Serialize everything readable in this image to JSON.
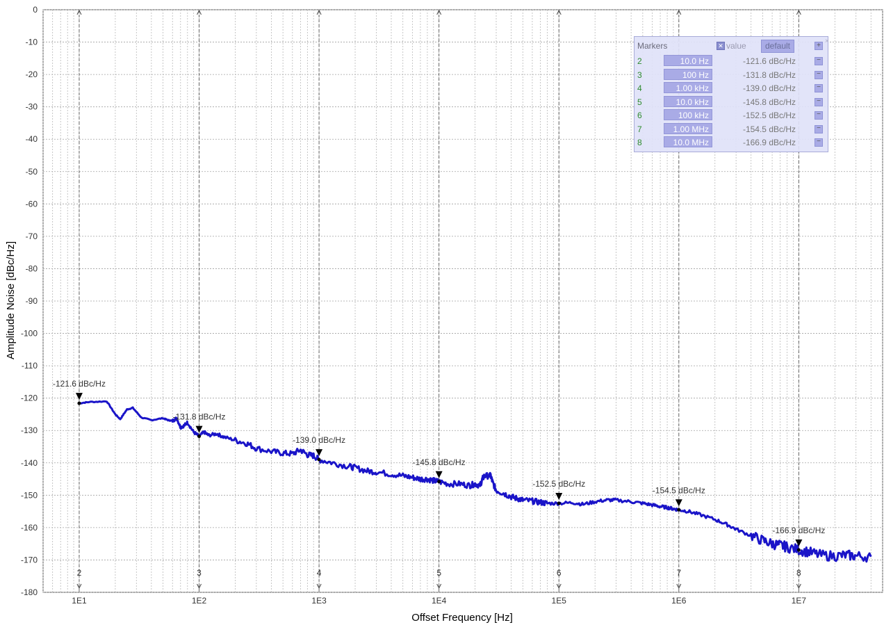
{
  "chart_data": {
    "type": "line",
    "title": "",
    "xlabel": "Offset Frequency [Hz]",
    "ylabel": "Amplitude Noise [dBc/Hz]",
    "x_scale": "log",
    "xlim": [
      5,
      50000000
    ],
    "ylim": [
      -180,
      0
    ],
    "x_ticks": [
      10,
      100,
      1000,
      10000,
      100000,
      1000000,
      10000000
    ],
    "x_tick_labels": [
      "1E1",
      "1E2",
      "1E3",
      "1E4",
      "1E5",
      "1E6",
      "1E7"
    ],
    "y_ticks": [
      0,
      -10,
      -20,
      -30,
      -40,
      -50,
      -60,
      -70,
      -80,
      -90,
      -100,
      -110,
      -120,
      -130,
      -140,
      -150,
      -160,
      -170,
      -180
    ],
    "y_tick_labels": [
      "0",
      "-10",
      "-20",
      "-30",
      "-40",
      "-50",
      "-60",
      "-70",
      "-80",
      "-90",
      "-100",
      "-110",
      "-120",
      "-130",
      "-140",
      "-150",
      "-160",
      "-170",
      "-180"
    ],
    "grid": true,
    "line_color": "#1a14c8",
    "series": [
      {
        "x": [
          10,
          12,
          17,
          20,
          22,
          25,
          28,
          33,
          40,
          50,
          55,
          60,
          65,
          70,
          75,
          80,
          90,
          100,
          110,
          120,
          140,
          160,
          200,
          250,
          300,
          400,
          500,
          600,
          700,
          800,
          900,
          1000,
          1300,
          1700,
          2000,
          2500,
          3000,
          4000,
          5000,
          6000,
          7000,
          8000,
          9000,
          10000,
          12000,
          15000,
          18000,
          20000,
          22000,
          23000,
          24000,
          27000,
          28000,
          30000,
          35000,
          40000,
          45000,
          50000,
          60000,
          70000,
          80000,
          100000,
          130000,
          160000,
          200000,
          250000,
          300000,
          400000,
          500000,
          600000,
          700000,
          800000,
          900000,
          1000000,
          1200000,
          1500000,
          2000000,
          2500000,
          3000000,
          4000000,
          5000000,
          6000000,
          7000000,
          8000000,
          10000000,
          12000000,
          15000000,
          20000000,
          25000000,
          30000000,
          40000000
        ],
        "y": [
          -121.6,
          -121.2,
          -121,
          -125,
          -126.5,
          -123.5,
          -123,
          -126,
          -126.8,
          -126.2,
          -126.8,
          -127,
          -126.2,
          -129,
          -128.5,
          -127.5,
          -130.5,
          -131.8,
          -130.5,
          -131.5,
          -131,
          -132,
          -133,
          -134,
          -135.5,
          -136.5,
          -137,
          -137.2,
          -136,
          -137.5,
          -137.8,
          -139.0,
          -140,
          -141,
          -141.5,
          -142.5,
          -142.8,
          -143.5,
          -144,
          -144.5,
          -145,
          -145,
          -145.5,
          -145.8,
          -146.5,
          -146.5,
          -147,
          -146.5,
          -147,
          -145,
          -144,
          -144,
          -146,
          -148.5,
          -149.5,
          -150.5,
          -151,
          -151.5,
          -151.8,
          -152.2,
          -152.5,
          -152.5,
          -152.3,
          -152.8,
          -152,
          -151.5,
          -151.5,
          -152,
          -152.5,
          -153,
          -153.5,
          -153.8,
          -154.2,
          -154.5,
          -155,
          -156,
          -157.5,
          -159,
          -160.5,
          -162.5,
          -164,
          -165,
          -165.5,
          -166,
          -166.9,
          -167.5,
          -168.5,
          -168.8,
          -168.5,
          -168.8,
          -169
        ]
      }
    ],
    "markers": [
      {
        "id": "2",
        "x": 10,
        "y": -121.6,
        "label": "-121.6 dBc/Hz"
      },
      {
        "id": "3",
        "x": 100,
        "y": -131.8,
        "label": "-131.8 dBc/Hz"
      },
      {
        "id": "4",
        "x": 1000,
        "y": -139.0,
        "label": "-139.0 dBc/Hz"
      },
      {
        "id": "5",
        "x": 10000,
        "y": -145.8,
        "label": "-145.8 dBc/Hz"
      },
      {
        "id": "6",
        "x": 100000,
        "y": -152.5,
        "label": "-152.5 dBc/Hz"
      },
      {
        "id": "7",
        "x": 1000000,
        "y": -154.5,
        "label": "-154.5 dBc/Hz"
      },
      {
        "id": "8",
        "x": 10000000,
        "y": -166.9,
        "label": "-166.9 dBc/Hz"
      }
    ]
  },
  "markers_panel": {
    "title": "Markers",
    "value_label": "value",
    "value_checked": true,
    "default_label": "default",
    "add_symbol": "+",
    "close_symbol": "×",
    "remove_symbol": "−",
    "rows": [
      {
        "id": "2",
        "freq": "10.0 Hz",
        "value": "-121.6 dBc/Hz"
      },
      {
        "id": "3",
        "freq": "100 Hz",
        "value": "-131.8 dBc/Hz"
      },
      {
        "id": "4",
        "freq": "1.00 kHz",
        "value": "-139.0 dBc/Hz"
      },
      {
        "id": "5",
        "freq": "10.0 kHz",
        "value": "-145.8 dBc/Hz"
      },
      {
        "id": "6",
        "freq": "100 kHz",
        "value": "-152.5 dBc/Hz"
      },
      {
        "id": "7",
        "freq": "1.00 MHz",
        "value": "-154.5 dBc/Hz"
      },
      {
        "id": "8",
        "freq": "10.0 MHz",
        "value": "-166.9 dBc/Hz"
      }
    ]
  }
}
